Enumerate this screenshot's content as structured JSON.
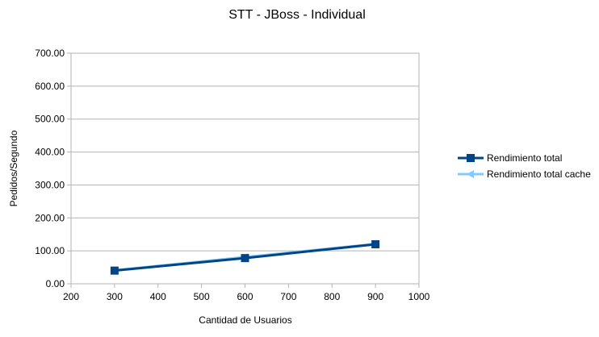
{
  "chart_data": {
    "type": "line",
    "title": "STT - JBoss - Individual",
    "xlabel": "Cantidad de Usuarios",
    "ylabel": "Pedidos/Segundo",
    "xlim": [
      200,
      1000
    ],
    "ylim": [
      0,
      700
    ],
    "x_ticks": [
      "200",
      "300",
      "400",
      "500",
      "600",
      "700",
      "800",
      "900",
      "1000"
    ],
    "y_ticks": [
      "0.00",
      "100.00",
      "200.00",
      "300.00",
      "400.00",
      "500.00",
      "600.00",
      "700.00"
    ],
    "grid": true,
    "legend_position": "right",
    "series": [
      {
        "name": "Rendimiento total",
        "color": "#004586",
        "marker": "square",
        "x": [
          300,
          600,
          900
        ],
        "y": [
          40,
          78,
          120
        ]
      },
      {
        "name": "Rendimiento total cache",
        "color": "#83caff",
        "marker": "triangle-left",
        "x": [
          300,
          600,
          900
        ],
        "y": [
          41,
          81,
          121
        ]
      }
    ]
  }
}
